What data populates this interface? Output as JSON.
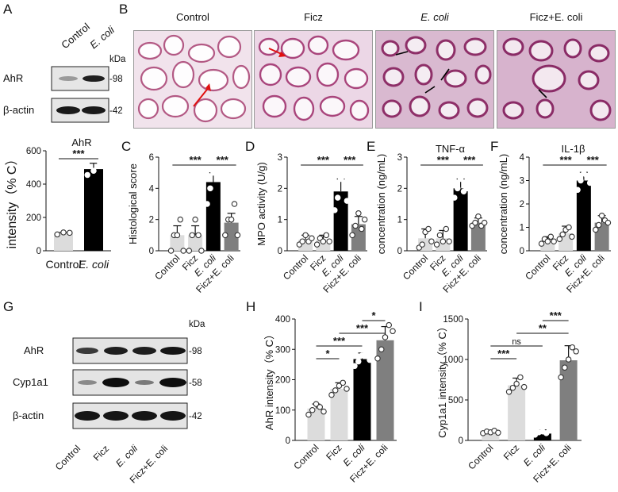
{
  "panels": {
    "A": {
      "letter": "A",
      "blot": {
        "lanes": [
          "Control",
          "E. coli"
        ],
        "unit": "kDa",
        "rows": [
          {
            "protein": "AhR",
            "kda": "-98"
          },
          {
            "protein": "β-actin",
            "kda": "-42"
          }
        ]
      }
    },
    "B": {
      "letter": "B",
      "images": [
        "Control",
        "Ficz",
        "E. coli",
        "Ficz+E. coli"
      ]
    },
    "C": {
      "letter": "C"
    },
    "D": {
      "letter": "D"
    },
    "E": {
      "letter": "E"
    },
    "F": {
      "letter": "F"
    },
    "G": {
      "letter": "G",
      "blot": {
        "lanes": [
          "Control",
          "Ficz",
          "E. coli",
          "Ficz+E. coli"
        ],
        "unit": "kDa",
        "rows": [
          {
            "protein": "AhR",
            "kda": "-98"
          },
          {
            "protein": "Cyp1a1",
            "kda": "-58"
          },
          {
            "protein": "β-actin",
            "kda": "-42"
          }
        ]
      }
    },
    "H": {
      "letter": "H"
    },
    "I": {
      "letter": "I"
    }
  },
  "chart_data": [
    {
      "id": "A-chart",
      "type": "bar",
      "title": "AhR",
      "ylabel": "intensity（% C）",
      "ylim": [
        0,
        600
      ],
      "yticks": [
        0,
        200,
        400,
        600
      ],
      "categories": [
        "Control",
        "E. coli"
      ],
      "values": [
        105,
        490
      ],
      "errors": [
        5,
        35
      ],
      "points": [
        [
          98,
          110,
          108
        ],
        [
          455,
          480,
          530
        ]
      ],
      "colors": [
        "#dcdcdc",
        "#000000"
      ],
      "significance": [
        {
          "from": 0,
          "to": 1,
          "label": "***"
        }
      ]
    },
    {
      "id": "C-chart",
      "type": "bar",
      "title": "",
      "ylabel": "Histological score",
      "ylim": [
        0,
        6
      ],
      "yticks": [
        0,
        2,
        4,
        6
      ],
      "categories": [
        "Control",
        "Ficz",
        "E. coli",
        "Ficz+E. coli"
      ],
      "values": [
        1.0,
        1.0,
        4.4,
        1.8
      ],
      "errors": [
        0.6,
        0.6,
        0.6,
        0.6
      ],
      "points": [
        [
          0,
          1,
          1,
          2,
          0
        ],
        [
          0,
          1,
          2,
          1,
          0
        ],
        [
          3,
          4,
          5,
          5,
          5
        ],
        [
          1,
          2,
          2,
          3,
          1
        ]
      ],
      "colors": [
        "#dcdcdc",
        "#dcdcdc",
        "#000000",
        "#7f7f7f"
      ],
      "significance": [
        {
          "from": 0,
          "to": 2,
          "label": "***"
        },
        {
          "from": 2,
          "to": 3,
          "label": "***"
        }
      ]
    },
    {
      "id": "D-chart",
      "type": "bar",
      "title": "",
      "ylabel": "MPO activity (U/g)",
      "ylim": [
        0,
        3
      ],
      "yticks": [
        0,
        1,
        2,
        3
      ],
      "categories": [
        "Control",
        "Ficz",
        "E. coli",
        "Ficz+E. coli"
      ],
      "values": [
        0.35,
        0.35,
        1.9,
        0.85
      ],
      "errors": [
        0.15,
        0.15,
        0.4,
        0.25
      ],
      "points": [
        [
          0.2,
          0.3,
          0.5,
          0.3,
          0.4
        ],
        [
          0.2,
          0.4,
          0.3,
          0.5,
          0.3
        ],
        [
          1.3,
          1.7,
          2.3,
          2.4,
          1.6
        ],
        [
          0.5,
          0.8,
          1.2,
          0.7,
          1.0
        ]
      ],
      "colors": [
        "#dcdcdc",
        "#dcdcdc",
        "#000000",
        "#7f7f7f"
      ],
      "significance": [
        {
          "from": 0,
          "to": 2,
          "label": "***"
        },
        {
          "from": 2,
          "to": 3,
          "label": "***"
        }
      ]
    },
    {
      "id": "E-chart",
      "type": "bar",
      "title": "TNF-α",
      "ylabel": "concentration (ng/mL)",
      "ylim": [
        0,
        3
      ],
      "yticks": [
        0,
        1,
        2,
        3
      ],
      "categories": [
        "Control",
        "Ficz",
        "E. coli",
        "Ficz+E. coli"
      ],
      "values": [
        0.4,
        0.4,
        2.0,
        0.9
      ],
      "errors": [
        0.3,
        0.25,
        0.3,
        0.15
      ],
      "points": [
        [
          0.1,
          0.2,
          0.6,
          0.7,
          0.3
        ],
        [
          0.2,
          0.5,
          0.3,
          0.7,
          0.3
        ],
        [
          1.7,
          2.0,
          2.3,
          1.9,
          2.0
        ],
        [
          0.8,
          0.9,
          1.1,
          0.8,
          0.9
        ]
      ],
      "colors": [
        "#dcdcdc",
        "#dcdcdc",
        "#000000",
        "#7f7f7f"
      ],
      "significance": [
        {
          "from": 0,
          "to": 2,
          "label": "***"
        },
        {
          "from": 2,
          "to": 3,
          "label": "***"
        }
      ]
    },
    {
      "id": "F-chart",
      "type": "bar",
      "title": "IL-1β",
      "ylabel": "concentration (ng/mL)",
      "ylim": [
        0,
        4
      ],
      "yticks": [
        0,
        1,
        2,
        3,
        4
      ],
      "categories": [
        "Control",
        "Ficz",
        "E. coli",
        "Ficz+E. coli"
      ],
      "values": [
        0.45,
        0.75,
        3.0,
        1.2
      ],
      "errors": [
        0.15,
        0.3,
        0.35,
        0.3
      ],
      "points": [
        [
          0.3,
          0.5,
          0.4,
          0.6,
          0.4
        ],
        [
          0.5,
          0.7,
          0.9,
          1.0,
          0.6
        ],
        [
          2.6,
          3.0,
          3.3,
          3.2,
          2.9
        ],
        [
          0.9,
          1.1,
          1.5,
          1.3,
          1.2
        ]
      ],
      "colors": [
        "#dcdcdc",
        "#dcdcdc",
        "#000000",
        "#7f7f7f"
      ],
      "significance": [
        {
          "from": 0,
          "to": 2,
          "label": "***"
        },
        {
          "from": 2,
          "to": 3,
          "label": "***"
        }
      ]
    },
    {
      "id": "H-chart",
      "type": "bar",
      "title": "",
      "ylabel": "AhR intensity（% C）",
      "ylim": [
        0,
        400
      ],
      "yticks": [
        0,
        100,
        200,
        300,
        400
      ],
      "categories": [
        "Control",
        "Ficz",
        "E. coli",
        "Ficz+E. coli"
      ],
      "values": [
        105,
        170,
        268,
        330
      ],
      "errors": [
        15,
        20,
        20,
        45
      ],
      "points": [
        [
          85,
          100,
          120,
          110,
          95
        ],
        [
          150,
          165,
          180,
          190,
          170
        ],
        [
          245,
          260,
          280,
          290,
          265
        ],
        [
          270,
          300,
          340,
          380,
          360
        ]
      ],
      "colors": [
        "#dcdcdc",
        "#dcdcdc",
        "#000000",
        "#7f7f7f"
      ],
      "significance": [
        {
          "from": 0,
          "to": 1,
          "label": "*",
          "level": 0
        },
        {
          "from": 0,
          "to": 2,
          "label": "***",
          "level": 1
        },
        {
          "from": 1,
          "to": 3,
          "label": "***",
          "level": 2
        },
        {
          "from": 2,
          "to": 3,
          "label": "*",
          "level": 3
        }
      ]
    },
    {
      "id": "I-chart",
      "type": "bar",
      "title": "",
      "ylabel": "Cyp1a1 intensity（% C）",
      "ylim": [
        0,
        1500
      ],
      "yticks": [
        0,
        500,
        1000,
        1500
      ],
      "categories": [
        "Control",
        "Ficz",
        "E. coli",
        "Ficz+E. coli"
      ],
      "values": [
        100,
        680,
        100,
        990
      ],
      "errors": [
        15,
        90,
        30,
        180
      ],
      "points": [
        [
          90,
          110,
          100,
          120,
          95
        ],
        [
          600,
          650,
          700,
          780,
          660
        ],
        [
          70,
          100,
          110,
          90,
          120
        ],
        [
          780,
          900,
          1000,
          1150,
          1100
        ]
      ],
      "colors": [
        "#dcdcdc",
        "#dcdcdc",
        "#000000",
        "#7f7f7f"
      ],
      "significance": [
        {
          "from": 0,
          "to": 1,
          "label": "***",
          "level": 0
        },
        {
          "from": 0,
          "to": 2,
          "label": "ns",
          "level": 1
        },
        {
          "from": 1,
          "to": 3,
          "label": "**",
          "level": 2
        },
        {
          "from": 2,
          "to": 3,
          "label": "***",
          "level": 3
        }
      ]
    }
  ]
}
